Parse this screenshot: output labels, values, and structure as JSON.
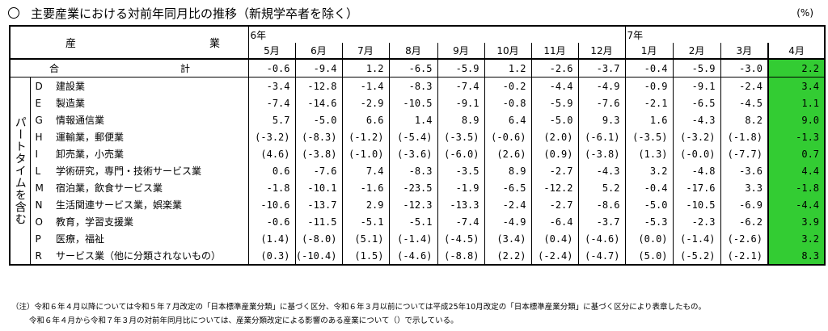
{
  "title": "主要産業における対前年同月比の推移（新規学卒者を除く）",
  "unit": "(%)",
  "header": {
    "sangyo_left": "産",
    "sangyo_right": "業",
    "year_2024": "6年",
    "year_2025": "7年",
    "months": [
      "5月",
      "6月",
      "7月",
      "8月",
      "9月",
      "10月",
      "11月",
      "12月",
      "1月",
      "2月",
      "3月",
      "4月"
    ]
  },
  "part_time_label": "パートタイムを含む",
  "total": {
    "label_a": "合",
    "label_b": "計",
    "values": [
      "-0.6",
      "-9.4",
      "1.2",
      "-6.5",
      "-5.9",
      "1.2",
      "-2.6",
      "-3.7",
      "-0.4",
      "-5.9",
      "-3.0",
      "2.2"
    ]
  },
  "rows": [
    {
      "code": "D",
      "name": "建設業",
      "values": [
        "-3.4",
        "-12.8",
        "-1.4",
        "-8.3",
        "-7.4",
        "-0.2",
        "-4.4",
        "-4.9",
        "-0.9",
        "-9.1",
        "-2.4",
        "3.4"
      ]
    },
    {
      "code": "E",
      "name": "製造業",
      "values": [
        "-7.4",
        "-14.6",
        "-2.9",
        "-10.5",
        "-9.1",
        "-0.8",
        "-5.9",
        "-7.6",
        "-2.1",
        "-6.5",
        "-4.5",
        "1.1"
      ]
    },
    {
      "code": "G",
      "name": "情報通信業",
      "values": [
        "5.7",
        "-5.0",
        "6.6",
        "1.4",
        "8.9",
        "6.4",
        "-5.0",
        "9.3",
        "1.6",
        "-4.3",
        "8.2",
        "9.0"
      ]
    },
    {
      "code": "H",
      "name": "運輸業，郵便業",
      "values": [
        "(-3.2)",
        "(-8.3)",
        "(-1.2)",
        "(-5.4)",
        "(-3.5)",
        "(-0.6)",
        "(2.0)",
        "(-6.1)",
        "(-3.5)",
        "(-3.2)",
        "(-1.8)",
        "-1.3"
      ]
    },
    {
      "code": "I",
      "name": "卸売業，小売業",
      "values": [
        "(4.6)",
        "(-3.8)",
        "(-1.0)",
        "(-3.6)",
        "(-6.0)",
        "(2.6)",
        "(0.9)",
        "(-3.8)",
        "(1.3)",
        "(-0.0)",
        "(-7.7)",
        "0.7"
      ]
    },
    {
      "code": "L",
      "name": "学術研究，専門・技術サービス業",
      "values": [
        "0.6",
        "-7.6",
        "7.4",
        "-8.3",
        "-3.5",
        "8.9",
        "-2.7",
        "-4.3",
        "3.2",
        "-4.8",
        "-3.6",
        "4.4"
      ]
    },
    {
      "code": "M",
      "name": "宿泊業，飲食サービス業",
      "values": [
        "-1.8",
        "-10.1",
        "-1.6",
        "-23.5",
        "-1.9",
        "-6.5",
        "-12.2",
        "5.2",
        "-0.4",
        "-17.6",
        "3.3",
        "-1.8"
      ]
    },
    {
      "code": "N",
      "name": "生活関連サービス業，娯楽業",
      "values": [
        "-10.6",
        "-13.7",
        "2.9",
        "-12.3",
        "-13.3",
        "-2.4",
        "-2.7",
        "-8.6",
        "-5.0",
        "-10.5",
        "-6.9",
        "-4.4"
      ]
    },
    {
      "code": "O",
      "name": "教育，学習支援業",
      "values": [
        "-0.6",
        "-11.5",
        "-5.1",
        "-5.1",
        "-7.4",
        "-4.9",
        "-6.4",
        "-3.7",
        "-5.3",
        "-2.3",
        "-6.2",
        "3.9"
      ]
    },
    {
      "code": "P",
      "name": "医療，福祉",
      "values": [
        "(1.4)",
        "(-8.0)",
        "(5.1)",
        "(-1.4)",
        "(-4.5)",
        "(3.4)",
        "(0.4)",
        "(-4.6)",
        "(0.0)",
        "(-1.4)",
        "(-2.6)",
        "3.2"
      ]
    },
    {
      "code": "R",
      "name": "サービス業（他に分類されないもの）",
      "values": [
        "(0.3)",
        "(-10.4)",
        "(1.5)",
        "(-4.6)",
        "(-8.8)",
        "(2.2)",
        "(-2.4)",
        "(-4.7)",
        "(5.0)",
        "(-5.2)",
        "(-2.1)",
        "8.3"
      ]
    }
  ],
  "notes": {
    "line1": "（注）令和６年４月以降については令和５年７月改定の「日本標準産業分類」に基づく区分、令和６年３月以前については平成25年10月改定の「日本標準産業分類」に基づく区分により表章したもの。",
    "line2": "令和６年４月から令和７年３月の対前年同月比については、産業分類改定による影響のある産業について（）で示している。"
  },
  "colors": {
    "highlight": "#33cc33"
  }
}
